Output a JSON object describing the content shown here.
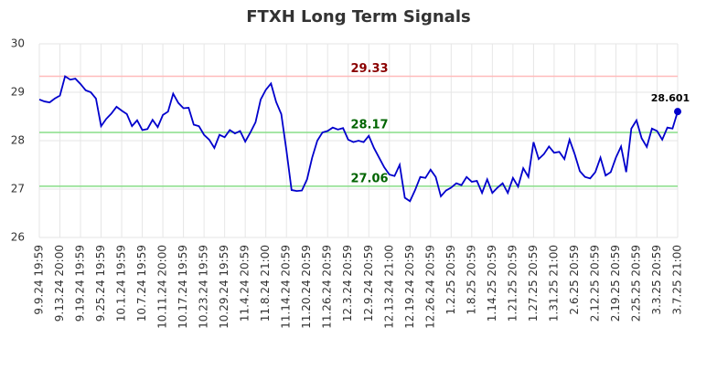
{
  "chart_data": {
    "type": "line",
    "title": "FTXH Long Term Signals",
    "categories": [
      "9.9.24 19:59",
      null,
      null,
      null,
      "9.13.24 20:00",
      null,
      null,
      null,
      "9.19.24 19:59",
      null,
      null,
      null,
      "9.25.24 19:59",
      null,
      null,
      null,
      "10.1.24 19:59",
      null,
      null,
      null,
      "10.7.24 19:59",
      null,
      null,
      null,
      "10.11.24 20:00",
      null,
      null,
      null,
      "10.17.24 19:59",
      null,
      null,
      null,
      "10.23.24 19:59",
      null,
      null,
      null,
      "10.29.24 19:59",
      null,
      null,
      null,
      "11.4.24 20:59",
      null,
      null,
      null,
      "11.8.24 21:00",
      null,
      null,
      null,
      "11.14.24 20:59",
      null,
      null,
      null,
      "11.20.24 20:59",
      null,
      null,
      null,
      "11.26.24 20:59",
      null,
      null,
      null,
      "12.3.24 20:59",
      null,
      null,
      null,
      "12.9.24 20:59",
      null,
      null,
      null,
      "12.13.24 21:00",
      null,
      null,
      null,
      "12.19.24 20:59",
      null,
      null,
      null,
      "12.26.24 20:59",
      null,
      null,
      null,
      "1.2.25 20:59",
      null,
      null,
      null,
      "1.8.25 20:59",
      null,
      null,
      null,
      "1.14.25 20:59",
      null,
      null,
      null,
      "1.21.25 20:59",
      null,
      null,
      null,
      "1.27.25 20:59",
      null,
      null,
      null,
      "1.31.25 21:00",
      null,
      null,
      null,
      "2.6.25 20:59",
      null,
      null,
      null,
      "2.12.25 20:59",
      null,
      null,
      null,
      "2.19.25 20:59",
      null,
      null,
      null,
      "2.25.25 20:59",
      null,
      null,
      null,
      "3.3.25 20:59",
      null,
      null,
      null,
      "3.7.25 21:00"
    ],
    "series": [
      {
        "color": "#0000cc",
        "values": [
          28.85,
          28.81,
          28.79,
          28.87,
          28.93,
          29.33,
          29.26,
          29.28,
          29.17,
          29.04,
          29.0,
          28.87,
          28.3,
          28.45,
          28.56,
          28.7,
          28.62,
          28.55,
          28.3,
          28.42,
          28.22,
          28.24,
          28.43,
          28.28,
          28.53,
          28.6,
          28.97,
          28.78,
          28.67,
          28.68,
          28.33,
          28.3,
          28.12,
          28.02,
          27.85,
          28.12,
          28.07,
          28.22,
          28.15,
          28.2,
          27.98,
          28.17,
          28.38,
          28.85,
          29.05,
          29.18,
          28.8,
          28.55,
          27.8,
          26.98,
          26.96,
          26.97,
          27.2,
          27.65,
          28.0,
          28.17,
          28.2,
          28.27,
          28.23,
          28.26,
          28.02,
          27.97,
          28.0,
          27.97,
          28.1,
          27.85,
          27.65,
          27.45,
          27.3,
          27.27,
          27.5,
          26.82,
          26.75,
          26.98,
          27.25,
          27.23,
          27.4,
          27.25,
          26.85,
          26.97,
          27.03,
          27.12,
          27.08,
          27.25,
          27.15,
          27.17,
          26.92,
          27.2,
          26.92,
          27.03,
          27.12,
          26.92,
          27.23,
          27.05,
          27.43,
          27.25,
          27.97,
          27.62,
          27.72,
          27.88,
          27.75,
          27.77,
          27.62,
          28.02,
          27.72,
          27.37,
          27.25,
          27.22,
          27.35,
          27.65,
          27.28,
          27.35,
          27.65,
          27.88,
          27.35,
          28.25,
          28.42,
          28.05,
          27.87,
          28.25,
          28.2,
          28.02,
          28.27,
          28.25,
          28.601
        ]
      }
    ],
    "hlines": [
      {
        "value": 29.33,
        "color": "#ffbbbb",
        "label_color": "#8b0000"
      },
      {
        "value": 28.17,
        "color": "#88dd88",
        "label_color": "#006400"
      },
      {
        "value": 27.06,
        "color": "#88dd88",
        "label_color": "#006400"
      }
    ],
    "ylim": [
      26,
      30
    ],
    "yticks": [
      26,
      27,
      28,
      29,
      30
    ],
    "grid": true
  }
}
